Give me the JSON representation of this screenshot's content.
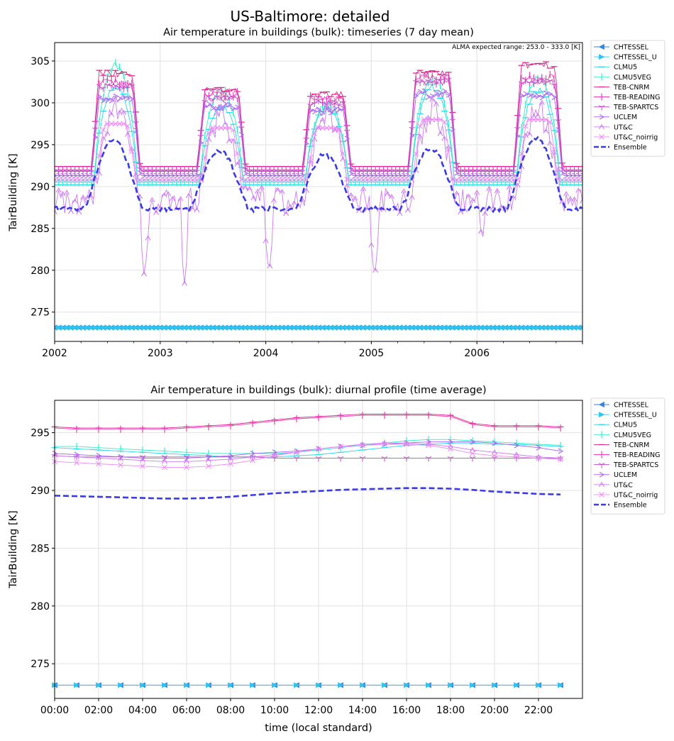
{
  "figure": {
    "suptitle": "US-Baltimore: detailed"
  },
  "colors": {
    "CHTESSEL": "#2e86e6",
    "CHTESSEL_U": "#2ec4f0",
    "CLMU5": "#25d8e8",
    "CLMU5VEG": "#2ef0c8",
    "TEB-CNRM": "#e0208a",
    "TEB-READING": "#e83cb8",
    "TEB-SPARTCS": "#c24ac8",
    "UCLEM": "#a864ee",
    "UT&C": "#cc7af0",
    "UT&C_noirrig": "#ea8af2",
    "Ensemble": "#3a3ae8"
  },
  "chart_data": [
    {
      "type": "line",
      "title": "Air temperature in buildings (bulk): timeseries (7 day mean)",
      "annotation": "ALMA expected range: 253.0 - 333.0 [K]",
      "xlabel": "",
      "ylabel": "TairBuilding [K]",
      "xlim": [
        "2002-01-01",
        "2007-01-01"
      ],
      "ylim": [
        271.5,
        307.2
      ],
      "yticks": [
        275,
        280,
        285,
        290,
        295,
        300,
        305
      ],
      "xtick_labels": [
        "2002",
        "2003",
        "2004",
        "2005",
        "2006"
      ],
      "grid": true,
      "legend": "outside-right",
      "series_params": {
        "CHTESSEL": {
          "style": "constant",
          "value": 273.15
        },
        "CHTESSEL_U": {
          "style": "constant",
          "value": 273.15
        },
        "CLMU5": {
          "style": "seasonal",
          "base": 290.2,
          "peak": [
            302,
            299.5,
            299.5,
            301.8,
            301.5
          ],
          "shape": "peaky"
        },
        "CLMU5VEG": {
          "style": "seasonal",
          "base": 290.5,
          "peak": [
            304.5,
            301.5,
            300,
            303,
            303
          ],
          "shape": "peaky"
        },
        "TEB-CNRM": {
          "style": "seasonal",
          "base": 292.4,
          "peak": [
            303.5,
            301.5,
            301,
            303.5,
            304.5
          ],
          "shape": "block"
        },
        "TEB-READING": {
          "style": "seasonal",
          "base": 292.0,
          "peak": [
            302.5,
            301,
            300.5,
            303,
            303
          ],
          "shape": "block"
        },
        "TEB-SPARTCS": {
          "style": "seasonal",
          "base": 291.8,
          "peak": [
            302,
            300.5,
            300,
            302.5,
            302.5
          ],
          "shape": "block"
        },
        "UCLEM": {
          "style": "seasonal",
          "base": 291.3,
          "peak": [
            300.5,
            299.5,
            299,
            301,
            301
          ],
          "shape": "block"
        },
        "UT&C": {
          "style": "seasonal",
          "base": 288.3,
          "peak": [
            299,
            298,
            298.5,
            299,
            299
          ],
          "shape": "noisy",
          "dips": [
            [
              0.85,
              279.0
            ],
            [
              1.23,
              278.3
            ],
            [
              2.03,
              279.3
            ],
            [
              3.03,
              278.8
            ],
            [
              4.05,
              283.0
            ]
          ]
        },
        "UT&C_noirrig": {
          "style": "seasonal",
          "base": 290.8,
          "peak": [
            297.5,
            297,
            297,
            298,
            298
          ],
          "shape": "flat"
        },
        "Ensemble": {
          "style": "seasonal",
          "base": 287.3,
          "peak": [
            295.5,
            294.3,
            293.8,
            294.6,
            295.7
          ],
          "shape": "smooth"
        }
      }
    },
    {
      "type": "line",
      "title": "Air temperature in buildings (bulk): diurnal profile (time average)",
      "xlabel": "time (local standard)",
      "ylabel": "TairBuilding [K]",
      "xlim": [
        0,
        24
      ],
      "ylim": [
        272.0,
        297.8
      ],
      "yticks": [
        275,
        280,
        285,
        290,
        295
      ],
      "xtick_labels": [
        "00:00",
        "02:00",
        "04:00",
        "06:00",
        "08:00",
        "10:00",
        "12:00",
        "14:00",
        "16:00",
        "18:00",
        "20:00",
        "22:00"
      ],
      "grid": true,
      "legend": "outside-right",
      "x": [
        0,
        1,
        2,
        3,
        4,
        5,
        6,
        7,
        8,
        9,
        10,
        11,
        12,
        13,
        14,
        15,
        16,
        17,
        18,
        19,
        20,
        21,
        22,
        23
      ],
      "series": [
        {
          "name": "CHTESSEL",
          "values": [
            273.15,
            273.15,
            273.15,
            273.15,
            273.15,
            273.15,
            273.15,
            273.15,
            273.15,
            273.15,
            273.15,
            273.15,
            273.15,
            273.15,
            273.15,
            273.15,
            273.15,
            273.15,
            273.15,
            273.15,
            273.15,
            273.15,
            273.15,
            273.15
          ]
        },
        {
          "name": "CHTESSEL_U",
          "values": [
            273.15,
            273.15,
            273.15,
            273.15,
            273.15,
            273.15,
            273.15,
            273.15,
            273.15,
            273.15,
            273.15,
            273.15,
            273.15,
            273.15,
            273.15,
            273.15,
            273.15,
            273.15,
            273.15,
            273.15,
            273.15,
            273.15,
            273.15,
            273.15
          ]
        },
        {
          "name": "CLMU5",
          "values": [
            293.7,
            293.6,
            293.5,
            293.4,
            293.3,
            293.2,
            293.1,
            293.0,
            292.9,
            292.9,
            292.9,
            293.0,
            293.1,
            293.3,
            293.5,
            293.7,
            293.9,
            294.0,
            294.1,
            294.1,
            294.0,
            294.0,
            293.9,
            293.8
          ]
        },
        {
          "name": "CLMU5VEG",
          "values": [
            293.8,
            293.8,
            293.7,
            293.6,
            293.5,
            293.4,
            293.3,
            293.2,
            293.2,
            293.2,
            293.2,
            293.3,
            293.5,
            293.7,
            293.9,
            294.1,
            294.3,
            294.4,
            294.4,
            294.3,
            294.2,
            294.1,
            294.0,
            293.9
          ]
        },
        {
          "name": "TEB-CNRM",
          "values": [
            295.5,
            295.4,
            295.4,
            295.4,
            295.4,
            295.4,
            295.5,
            295.6,
            295.7,
            295.9,
            296.1,
            296.3,
            296.4,
            296.5,
            296.6,
            296.6,
            296.6,
            296.6,
            296.5,
            295.8,
            295.6,
            295.6,
            295.6,
            295.5
          ]
        },
        {
          "name": "TEB-READING",
          "values": [
            295.4,
            295.3,
            295.3,
            295.3,
            295.3,
            295.3,
            295.4,
            295.5,
            295.6,
            295.8,
            296.0,
            296.2,
            296.3,
            296.4,
            296.5,
            296.5,
            296.5,
            296.5,
            296.4,
            295.7,
            295.5,
            295.5,
            295.5,
            295.4
          ]
        },
        {
          "name": "TEB-SPARTCS",
          "values": [
            293.0,
            292.9,
            292.9,
            292.9,
            292.9,
            292.9,
            292.9,
            292.9,
            292.9,
            292.9,
            292.8,
            292.8,
            292.8,
            292.8,
            292.8,
            292.8,
            292.8,
            292.8,
            292.8,
            292.8,
            292.8,
            292.8,
            292.8,
            292.8
          ]
        },
        {
          "name": "UCLEM",
          "values": [
            293.2,
            293.1,
            293.0,
            292.9,
            292.8,
            292.8,
            292.8,
            292.9,
            293.0,
            293.2,
            293.3,
            293.4,
            293.6,
            293.8,
            293.9,
            294.0,
            294.1,
            294.2,
            294.2,
            294.2,
            294.1,
            293.9,
            293.7,
            293.4
          ]
        },
        {
          "name": "UT&C",
          "values": [
            293.0,
            292.9,
            292.8,
            292.7,
            292.6,
            292.5,
            292.5,
            292.6,
            292.7,
            292.9,
            293.1,
            293.3,
            293.6,
            293.8,
            294.0,
            294.1,
            294.1,
            294.0,
            293.8,
            293.5,
            293.3,
            293.1,
            292.9,
            292.8
          ]
        },
        {
          "name": "UT&C_noirrig",
          "values": [
            292.5,
            292.4,
            292.3,
            292.2,
            292.1,
            292.0,
            292.0,
            292.1,
            292.3,
            292.6,
            293.0,
            293.3,
            293.6,
            293.8,
            293.9,
            294.0,
            294.0,
            293.9,
            293.6,
            293.2,
            293.0,
            292.9,
            292.8,
            292.7
          ]
        },
        {
          "name": "Ensemble",
          "values": [
            289.55,
            289.5,
            289.45,
            289.4,
            289.35,
            289.3,
            289.3,
            289.35,
            289.45,
            289.6,
            289.75,
            289.85,
            289.95,
            290.05,
            290.1,
            290.15,
            290.2,
            290.2,
            290.15,
            290.05,
            289.9,
            289.8,
            289.7,
            289.65
          ]
        }
      ]
    }
  ]
}
